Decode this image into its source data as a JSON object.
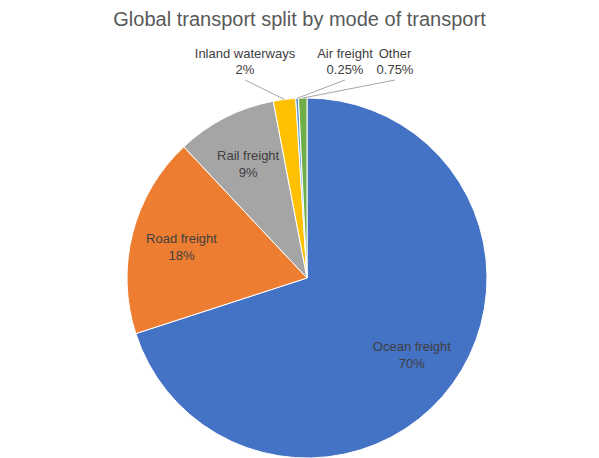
{
  "chart_data": {
    "type": "pie",
    "title": "Global transport split by mode of transport",
    "categories": [
      "Ocean freight",
      "Road freight",
      "Rail freight",
      "Inland waterways",
      "Air freight",
      "Other"
    ],
    "values": [
      70,
      18,
      9,
      2,
      0.25,
      0.75
    ],
    "value_labels": [
      "70%",
      "18%",
      "9%",
      "2%",
      "0.25%",
      "0.75%"
    ],
    "colors": [
      "#4472c4",
      "#ed7d31",
      "#a5a5a5",
      "#ffc000",
      "#5b9bd5",
      "#70ad47"
    ],
    "data_labels": true
  }
}
